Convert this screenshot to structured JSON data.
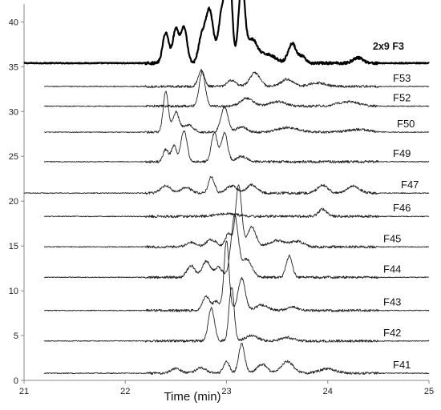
{
  "chart_data": {
    "type": "line",
    "title": "",
    "xlabel": "Time (min)",
    "ylabel": "",
    "xlim": [
      21,
      25
    ],
    "ylim": [
      0,
      42
    ],
    "x_ticks": [
      "21",
      "22",
      "23",
      "24",
      "25"
    ],
    "y_ticks": [
      "0",
      "5",
      "10",
      "15",
      "20",
      "25",
      "30",
      "35",
      "40"
    ],
    "series": [
      {
        "name": "2x9 F3",
        "baseline": 35.4,
        "x_start": 21.0,
        "bold": true,
        "peaks": [
          [
            22.4,
            3.4,
            0.03
          ],
          [
            22.5,
            3.8,
            0.03
          ],
          [
            22.58,
            4.0,
            0.03
          ],
          [
            22.75,
            2.5,
            0.03
          ],
          [
            22.83,
            6.0,
            0.04
          ],
          [
            22.95,
            5.2,
            0.03
          ],
          [
            23.02,
            12.5,
            0.03
          ],
          [
            23.15,
            9.0,
            0.03
          ],
          [
            23.25,
            2.5,
            0.05
          ],
          [
            23.4,
            1.0,
            0.08
          ],
          [
            23.65,
            2.2,
            0.04
          ],
          [
            23.75,
            0.7,
            0.03
          ],
          [
            24.3,
            0.6,
            0.05
          ]
        ]
      },
      {
        "name": "F53",
        "baseline": 32.8,
        "x_start": 21.2,
        "bold": false,
        "peaks": [
          [
            22.75,
            1.8,
            0.03
          ],
          [
            23.05,
            0.7,
            0.04
          ],
          [
            23.28,
            1.5,
            0.05
          ],
          [
            23.6,
            0.8,
            0.06
          ],
          [
            23.9,
            0.4,
            0.08
          ]
        ]
      },
      {
        "name": "F52",
        "baseline": 30.6,
        "x_start": 21.2,
        "bold": false,
        "peaks": [
          [
            22.76,
            3.8,
            0.03
          ],
          [
            23.2,
            0.9,
            0.06
          ],
          [
            23.5,
            0.5,
            0.08
          ],
          [
            24.2,
            0.5,
            0.1
          ]
        ]
      },
      {
        "name": "F50",
        "baseline": 27.7,
        "x_start": 21.2,
        "bold": false,
        "peaks": [
          [
            22.4,
            4.5,
            0.025
          ],
          [
            22.5,
            2.2,
            0.03
          ],
          [
            22.62,
            0.8,
            0.05
          ],
          [
            22.98,
            2.8,
            0.035
          ],
          [
            23.15,
            0.6,
            0.05
          ],
          [
            23.6,
            0.5,
            0.1
          ],
          [
            24.3,
            0.3,
            0.1
          ]
        ]
      },
      {
        "name": "F49",
        "baseline": 24.4,
        "x_start": 21.2,
        "bold": false,
        "peaks": [
          [
            22.4,
            1.4,
            0.025
          ],
          [
            22.48,
            1.8,
            0.025
          ],
          [
            22.58,
            3.5,
            0.03
          ],
          [
            22.88,
            3.2,
            0.03
          ],
          [
            22.98,
            3.2,
            0.03
          ],
          [
            23.15,
            0.6,
            0.05
          ]
        ]
      },
      {
        "name": "F47",
        "baseline": 20.9,
        "x_start": 21.0,
        "bold": false,
        "peaks": [
          [
            22.4,
            0.8,
            0.05
          ],
          [
            22.6,
            0.6,
            0.05
          ],
          [
            22.85,
            1.8,
            0.03
          ],
          [
            23.05,
            0.8,
            0.05
          ],
          [
            23.25,
            0.9,
            0.05
          ],
          [
            23.95,
            0.9,
            0.05
          ],
          [
            24.25,
            0.8,
            0.06
          ]
        ]
      },
      {
        "name": "F46",
        "baseline": 18.3,
        "x_start": 21.2,
        "bold": false,
        "peaks": [
          [
            23.0,
            0.3,
            0.1
          ],
          [
            23.95,
            0.8,
            0.04
          ]
        ]
      },
      {
        "name": "F45",
        "baseline": 14.9,
        "x_start": 21.2,
        "bold": false,
        "peaks": [
          [
            22.65,
            0.5,
            0.05
          ],
          [
            22.85,
            0.8,
            0.05
          ],
          [
            23.02,
            1.5,
            0.03
          ],
          [
            23.12,
            6.8,
            0.03
          ],
          [
            23.25,
            2.2,
            0.04
          ],
          [
            23.5,
            0.7,
            0.08
          ],
          [
            23.7,
            0.6,
            0.06
          ]
        ]
      },
      {
        "name": "F44",
        "baseline": 11.5,
        "x_start": 21.2,
        "bold": false,
        "peaks": [
          [
            22.65,
            1.3,
            0.04
          ],
          [
            22.8,
            1.8,
            0.04
          ],
          [
            22.92,
            1.1,
            0.04
          ],
          [
            23.08,
            6.8,
            0.035
          ],
          [
            23.2,
            2.0,
            0.05
          ],
          [
            23.62,
            2.4,
            0.03
          ]
        ]
      },
      {
        "name": "F43",
        "baseline": 7.8,
        "x_start": 21.2,
        "bold": false,
        "peaks": [
          [
            22.8,
            1.6,
            0.035
          ],
          [
            22.9,
            1.0,
            0.03
          ],
          [
            23.0,
            7.8,
            0.025
          ],
          [
            23.15,
            3.6,
            0.035
          ],
          [
            23.35,
            0.6,
            0.06
          ],
          [
            23.65,
            0.4,
            0.05
          ]
        ]
      },
      {
        "name": "F42",
        "baseline": 4.4,
        "x_start": 21.2,
        "bold": false,
        "peaks": [
          [
            22.85,
            3.7,
            0.03
          ],
          [
            23.05,
            6.0,
            0.025
          ],
          [
            23.25,
            0.6,
            0.06
          ],
          [
            23.6,
            0.4,
            0.06
          ]
        ]
      },
      {
        "name": "F41",
        "baseline": 0.8,
        "x_start": 21.2,
        "bold": false,
        "peaks": [
          [
            22.5,
            0.5,
            0.05
          ],
          [
            22.75,
            0.6,
            0.05
          ],
          [
            23.0,
            1.3,
            0.03
          ],
          [
            23.15,
            3.3,
            0.03
          ],
          [
            23.35,
            1.0,
            0.05
          ],
          [
            23.6,
            1.3,
            0.06
          ],
          [
            24.0,
            0.5,
            0.08
          ]
        ]
      }
    ]
  }
}
